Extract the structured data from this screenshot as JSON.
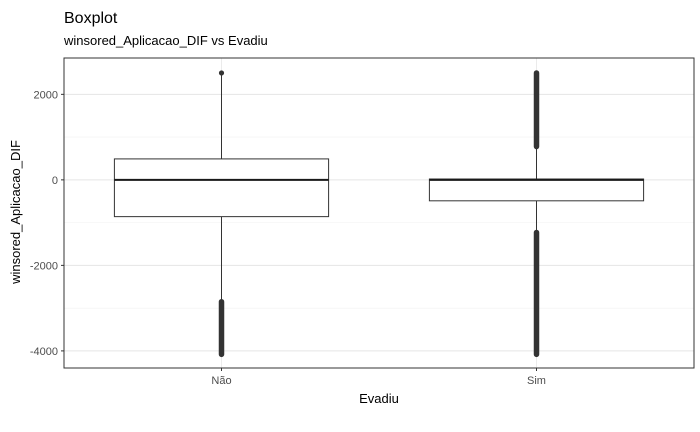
{
  "chart_data": {
    "type": "boxplot",
    "title": "Boxplot",
    "subtitle": "winsored_Aplicacao_DIF vs Evadiu",
    "xlabel": "Evadiu",
    "ylabel": "winsored_Aplicacao_DIF",
    "categories": [
      "Não",
      "Sim"
    ],
    "ylim": [
      -4400,
      2850
    ],
    "yticks": [
      2000,
      0,
      -2000,
      -4000
    ],
    "ytick_labels": [
      "2000",
      "0",
      "-2000",
      "-4000"
    ],
    "grid": true,
    "boxes": [
      {
        "category": "Não",
        "whisker_low": -2850,
        "q1": -860,
        "median": 0,
        "q3": 490,
        "whisker_high": 2500,
        "outliers_low": [
          -2850,
          -4080
        ],
        "outliers_high": [
          2500,
          2500
        ]
      },
      {
        "category": "Sim",
        "whisker_low": -1230,
        "q1": -490,
        "median": 0,
        "q3": 20,
        "whisker_high": 780,
        "outliers_low": [
          -1230,
          -4080
        ],
        "outliers_high": [
          780,
          2500
        ]
      }
    ]
  }
}
